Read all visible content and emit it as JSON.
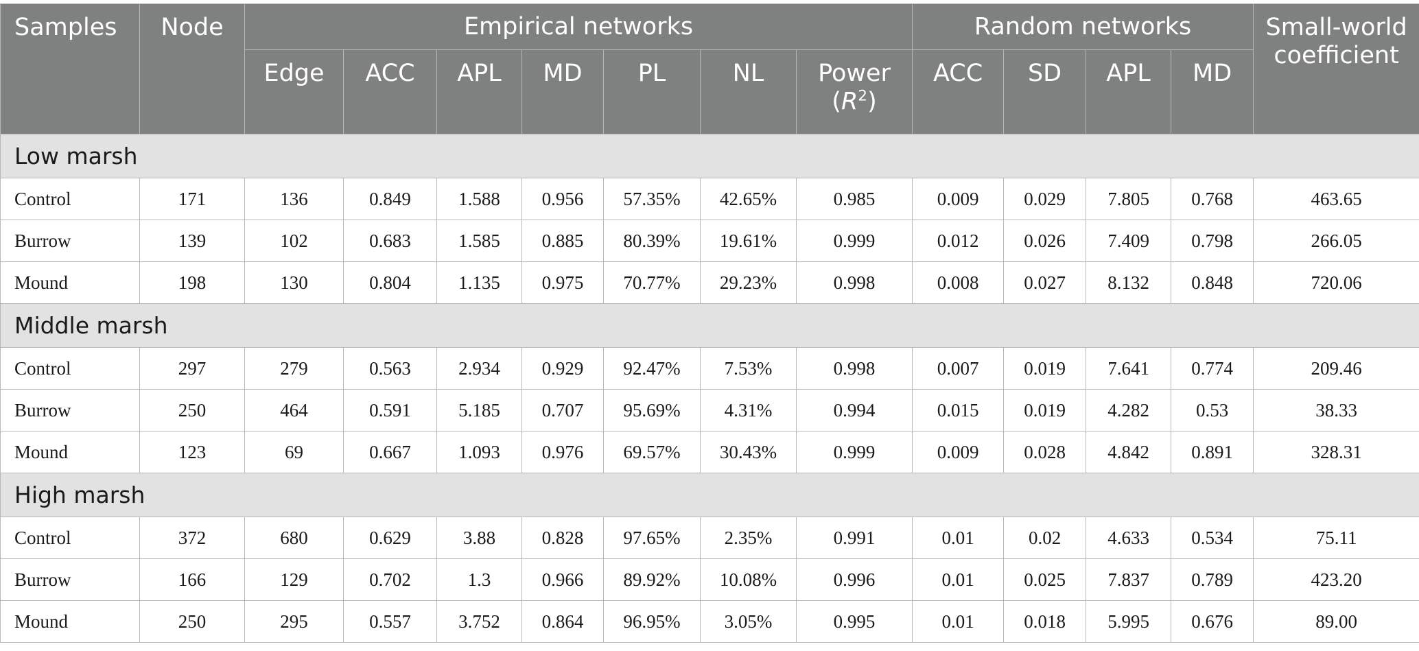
{
  "header": {
    "samples": "Samples",
    "node": "Node",
    "empirical": "Empirical networks",
    "random": "Random networks",
    "small_world": "Small-world coefficient",
    "sub": {
      "edge": "Edge",
      "e_acc": "ACC",
      "e_apl": "APL",
      "e_md": "MD",
      "pl": "PL",
      "nl": "NL",
      "power": "Power",
      "r": "R",
      "sq": "2",
      "r_acc": "ACC",
      "sd": "SD",
      "r_apl": "APL",
      "r_md": "MD"
    }
  },
  "sections": [
    {
      "title": "Low marsh",
      "rows": [
        {
          "sample": "Control",
          "node": "171",
          "edge": "136",
          "acc": "0.849",
          "apl": "1.588",
          "md": "0.956",
          "pl": "57.35%",
          "nl": "42.65%",
          "power": "0.985",
          "racc": "0.009",
          "sd": "0.029",
          "rapl": "7.805",
          "rmd": "0.768",
          "swc": "463.65"
        },
        {
          "sample": "Burrow",
          "node": "139",
          "edge": "102",
          "acc": "0.683",
          "apl": "1.585",
          "md": "0.885",
          "pl": "80.39%",
          "nl": "19.61%",
          "power": "0.999",
          "racc": "0.012",
          "sd": "0.026",
          "rapl": "7.409",
          "rmd": "0.798",
          "swc": "266.05"
        },
        {
          "sample": "Mound",
          "node": "198",
          "edge": "130",
          "acc": "0.804",
          "apl": "1.135",
          "md": "0.975",
          "pl": "70.77%",
          "nl": "29.23%",
          "power": "0.998",
          "racc": "0.008",
          "sd": "0.027",
          "rapl": "8.132",
          "rmd": "0.848",
          "swc": "720.06"
        }
      ]
    },
    {
      "title": "Middle marsh",
      "rows": [
        {
          "sample": "Control",
          "node": "297",
          "edge": "279",
          "acc": "0.563",
          "apl": "2.934",
          "md": "0.929",
          "pl": "92.47%",
          "nl": "7.53%",
          "power": "0.998",
          "racc": "0.007",
          "sd": "0.019",
          "rapl": "7.641",
          "rmd": "0.774",
          "swc": "209.46"
        },
        {
          "sample": "Burrow",
          "node": "250",
          "edge": "464",
          "acc": "0.591",
          "apl": "5.185",
          "md": "0.707",
          "pl": "95.69%",
          "nl": "4.31%",
          "power": "0.994",
          "racc": "0.015",
          "sd": "0.019",
          "rapl": "4.282",
          "rmd": "0.53",
          "swc": "38.33"
        },
        {
          "sample": "Mound",
          "node": "123",
          "edge": "69",
          "acc": "0.667",
          "apl": "1.093",
          "md": "0.976",
          "pl": "69.57%",
          "nl": "30.43%",
          "power": "0.999",
          "racc": "0.009",
          "sd": "0.028",
          "rapl": "4.842",
          "rmd": "0.891",
          "swc": "328.31"
        }
      ]
    },
    {
      "title": "High marsh",
      "rows": [
        {
          "sample": "Control",
          "node": "372",
          "edge": "680",
          "acc": "0.629",
          "apl": "3.88",
          "md": "0.828",
          "pl": "97.65%",
          "nl": "2.35%",
          "power": "0.991",
          "racc": "0.01",
          "sd": "0.02",
          "rapl": "4.633",
          "rmd": "0.534",
          "swc": "75.11"
        },
        {
          "sample": "Burrow",
          "node": "166",
          "edge": "129",
          "acc": "0.702",
          "apl": "1.3",
          "md": "0.966",
          "pl": "89.92%",
          "nl": "10.08%",
          "power": "0.996",
          "racc": "0.01",
          "sd": "0.025",
          "rapl": "7.837",
          "rmd": "0.789",
          "swc": "423.20"
        },
        {
          "sample": "Mound",
          "node": "250",
          "edge": "295",
          "acc": "0.557",
          "apl": "3.752",
          "md": "0.864",
          "pl": "96.95%",
          "nl": "3.05%",
          "power": "0.995",
          "racc": "0.01",
          "sd": "0.018",
          "rapl": "5.995",
          "rmd": "0.676",
          "swc": "89.00"
        }
      ]
    }
  ]
}
